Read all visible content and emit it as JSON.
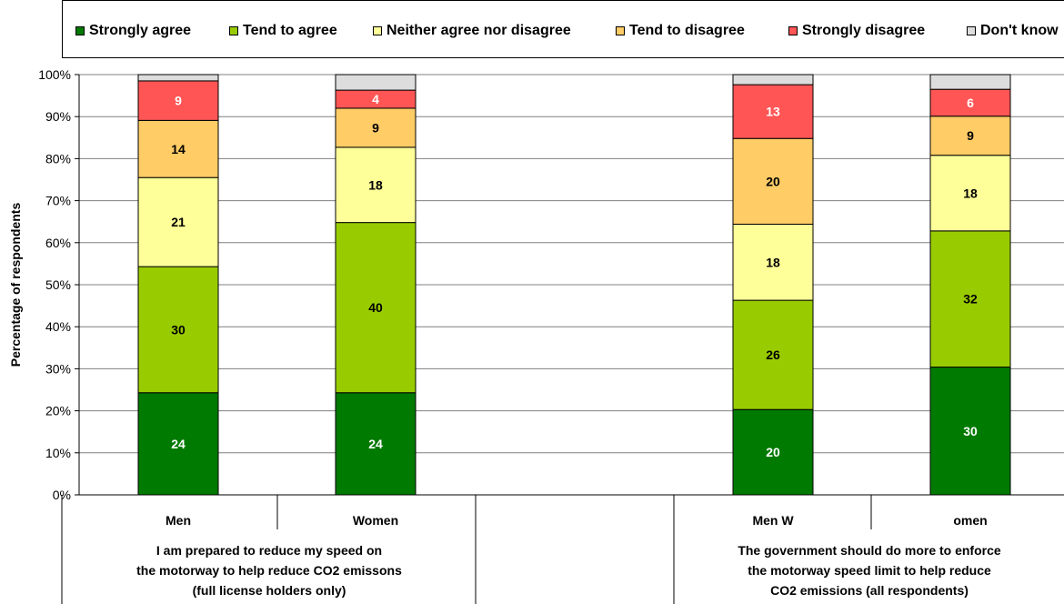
{
  "chart_data": {
    "type": "bar",
    "stacked": true,
    "ylabel": "Percentage of respondents",
    "ylim": [
      0,
      100
    ],
    "yticks": [
      "0%",
      "10%",
      "20%",
      "30%",
      "40%",
      "50%",
      "60%",
      "70%",
      "80%",
      "90%",
      "100%"
    ],
    "categories": [
      "Men",
      "Women",
      "Men W",
      "omen"
    ],
    "groups": [
      {
        "label_lines": [
          "I am prepared to reduce my speed on",
          "the motorway to help reduce CO2 emissons",
          "(full license holders only)"
        ]
      },
      {
        "label_lines": []
      },
      {
        "label_lines": [
          "The government should do more to enforce",
          "the motorway speed limit to help reduce",
          "CO2 emissions (all respondents)"
        ]
      }
    ],
    "series": [
      {
        "name": "Strongly agree",
        "color": "#007A00",
        "label_color": "#ffffff",
        "values": [
          24.3,
          24.3,
          20.3,
          30.4
        ]
      },
      {
        "name": "Tend to agree",
        "color": "#99CC00",
        "label_color": "#000000",
        "values": [
          30.0,
          40.5,
          26.0,
          32.4
        ]
      },
      {
        "name": "Neither agree nor disagree",
        "color": "#FFFF99",
        "label_color": "#000000",
        "values": [
          21.2,
          17.9,
          18.1,
          18.0
        ]
      },
      {
        "name": "Tend to disagree",
        "color": "#FFCC66",
        "label_color": "#000000",
        "values": [
          13.6,
          9.3,
          20.4,
          9.3
        ]
      },
      {
        "name": "Strongly disagree",
        "color": "#FF5555",
        "label_color": "#ffffff",
        "values": [
          9.4,
          4.3,
          12.8,
          6.4
        ]
      },
      {
        "name": "Don't know",
        "color": "#DDDDDD",
        "label_color": "#000000",
        "values": [
          1.5,
          3.7,
          2.4,
          3.5
        ]
      }
    ],
    "data_labels": [
      [
        "24",
        "30",
        "21",
        "14",
        "9",
        ""
      ],
      [
        "24",
        "40",
        "18",
        "9",
        "4",
        ""
      ],
      [
        "20",
        "26",
        "18",
        "20",
        "13",
        ""
      ],
      [
        "30",
        "32",
        "18",
        "9",
        "6",
        ""
      ]
    ],
    "legend_position": "top",
    "grid": true
  }
}
